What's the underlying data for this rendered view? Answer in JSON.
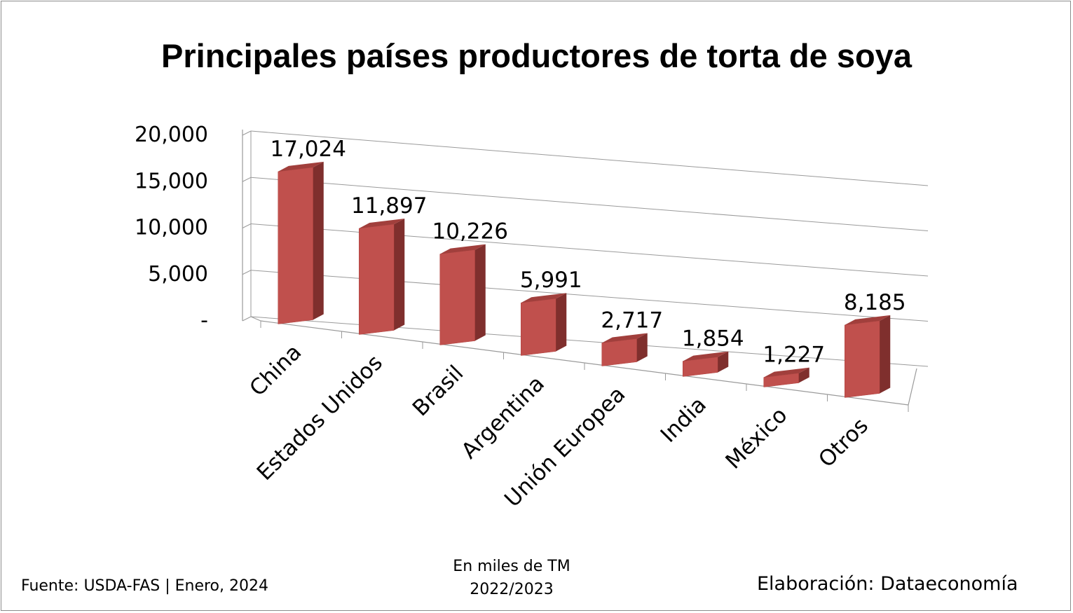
{
  "chart_data": {
    "type": "bar",
    "title": "Principales países productores de torta de soya",
    "categories": [
      "China",
      "Estados Unidos",
      "Brasil",
      "Argentina",
      "Unión Europea",
      "India",
      "México",
      "Otros"
    ],
    "values": [
      17024,
      11897,
      10226,
      5991,
      2717,
      1854,
      1227,
      8185
    ],
    "value_labels": [
      "17,024",
      "11,897",
      "10,226",
      "5,991",
      "2,717",
      "1,854",
      "1,227",
      "8,185"
    ],
    "ylim": [
      0,
      20000
    ],
    "yticks": [
      0,
      5000,
      10000,
      15000,
      20000
    ],
    "ytick_labels": [
      "-",
      "5,000",
      "10,000",
      "15,000",
      "20,000"
    ],
    "grid": true,
    "style": "3d-column",
    "bar_color": "#c0504d"
  },
  "footer": {
    "source": "Fuente:  USDA-FAS | Enero, 2024",
    "units_line1": "En miles de TM",
    "units_line2": "2022/2023",
    "credit": "Elaboración: Dataeconomía"
  }
}
